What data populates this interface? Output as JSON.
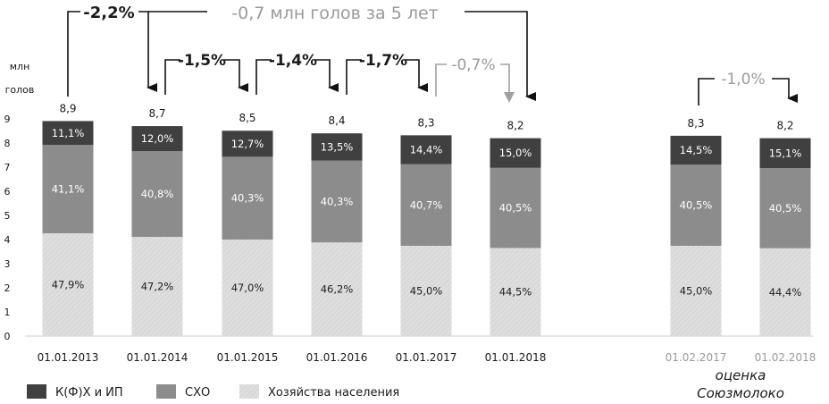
{
  "chart_data": {
    "type": "bar",
    "stacked": true,
    "ylabel": "млн голов",
    "ylim": [
      0,
      9
    ],
    "y_ticks": [
      "0",
      "1",
      "2",
      "3",
      "4",
      "5",
      "6",
      "7",
      "8",
      "9"
    ],
    "categories": [
      "01.01.2013",
      "01.01.2014",
      "01.01.2015",
      "01.01.2016",
      "01.01.2017",
      "01.01.2018",
      "01.02.2017",
      "01.02.2018"
    ],
    "totals": [
      "8,9",
      "8,7",
      "8,5",
      "8,4",
      "8,3",
      "8,2",
      "8,3",
      "8,2"
    ],
    "total_values": [
      8.9,
      8.7,
      8.5,
      8.4,
      8.3,
      8.2,
      8.3,
      8.2
    ],
    "series": [
      {
        "name": "Хозяйства населения",
        "color": "#d9d9d9",
        "values": [
          4.26,
          4.11,
          4.0,
          3.88,
          3.74,
          3.65,
          3.74,
          3.64
        ],
        "labels": [
          "47,9%",
          "47,2%",
          "47,0%",
          "46,2%",
          "45,0%",
          "44,5%",
          "45,0%",
          "44,4%"
        ]
      },
      {
        "name": "СХО",
        "color": "#8c8c8c",
        "values": [
          3.66,
          3.55,
          3.43,
          3.39,
          3.38,
          3.32,
          3.36,
          3.32
        ],
        "labels": [
          "41,1%",
          "40,8%",
          "40,3%",
          "40,3%",
          "40,7%",
          "40,5%",
          "40,5%",
          "40,5%"
        ]
      },
      {
        "name": "К(Ф)Х и ИП",
        "color": "#404040",
        "values": [
          0.99,
          1.04,
          1.08,
          1.13,
          1.2,
          1.23,
          1.2,
          1.24
        ],
        "labels": [
          "11,1%",
          "12,0%",
          "12,7%",
          "13,5%",
          "14,4%",
          "15,0%",
          "14,5%",
          "15,1%"
        ]
      }
    ],
    "legend": {
      "placement": "bottom-left",
      "items": [
        {
          "label": "К(Ф)Х и ИП",
          "color": "#404040"
        },
        {
          "label": "СХО",
          "color": "#8c8c8c"
        },
        {
          "label": "Хозяйства населения",
          "color": "#d9d9d9"
        }
      ]
    },
    "annotations": {
      "top_left": "-2,2%",
      "top_main": "-0,7 млн голов за 5 лет",
      "steps": [
        "-1,5%",
        "-1,4%",
        "-1,7%"
      ],
      "grey_step": "-0,7%",
      "right_step": "-1,0%",
      "estimate_note_line1": "оценка",
      "estimate_note_line2": "Союзмолоко"
    },
    "colors": {
      "text": "#1a1a1a",
      "grey_text": "#9a9a9a",
      "arrow": "#111111"
    }
  }
}
